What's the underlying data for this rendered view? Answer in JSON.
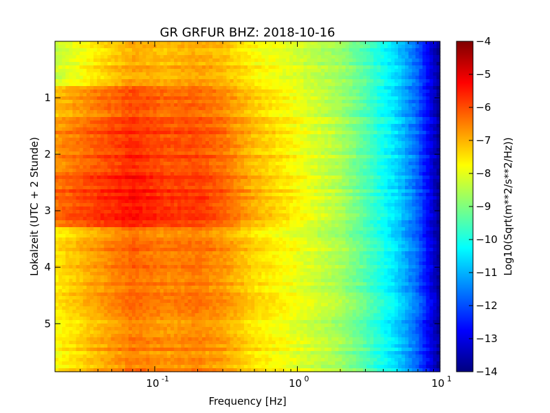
{
  "chart_data": {
    "type": "heatmap",
    "title": "GR GRFUR BHZ: 2018-10-16",
    "xlabel": "Frequency [Hz]",
    "ylabel": "Lokalzeit (UTC + 2 Stunde)",
    "x_scale": "log",
    "xlim": [
      0.02,
      10
    ],
    "ylim": [
      5.85,
      0.0
    ],
    "x_ticks": [
      {
        "base": "10",
        "exp": "-1",
        "value": 0.1
      },
      {
        "base": "10",
        "exp": "0",
        "value": 1
      },
      {
        "base": "10",
        "exp": "1",
        "value": 10
      }
    ],
    "y_ticks": [
      1,
      2,
      3,
      4,
      5
    ],
    "colorbar": {
      "label": "Log10(Sqrt(m**2/s**2/Hz))",
      "range": [
        -14,
        -4
      ],
      "ticks": [
        -4,
        -5,
        -6,
        -7,
        -8,
        -9,
        -10,
        -11,
        -12,
        -13,
        -14
      ],
      "colormap": "jet"
    },
    "approx_profile": {
      "note_free": true,
      "freq_hz": [
        0.02,
        0.04,
        0.07,
        0.12,
        0.2,
        0.3,
        0.5,
        1,
        2,
        3,
        5,
        7,
        10
      ],
      "level": [
        -7.3,
        -6.6,
        -6.1,
        -6.4,
        -6.3,
        -6.6,
        -7.3,
        -7.9,
        -8.6,
        -9.4,
        -10.6,
        -11.8,
        -13.8
      ]
    },
    "hour_bands": [
      {
        "start": 0.0,
        "end": 0.82,
        "offset": -1.0
      },
      {
        "start": 0.82,
        "end": 1.45,
        "offset": 0.25
      },
      {
        "start": 1.45,
        "end": 2.3,
        "offset": 0.6
      },
      {
        "start": 2.3,
        "end": 3.3,
        "offset": 1.0
      },
      {
        "start": 3.3,
        "end": 4.5,
        "offset": -0.2
      },
      {
        "start": 4.5,
        "end": 5.85,
        "offset": -0.45
      }
    ]
  },
  "colors": {
    "jet": [
      "#00007f",
      "#0000ff",
      "#007fff",
      "#00ffff",
      "#7fff7f",
      "#ffff00",
      "#ff7f00",
      "#ff0000",
      "#7f0000"
    ]
  }
}
